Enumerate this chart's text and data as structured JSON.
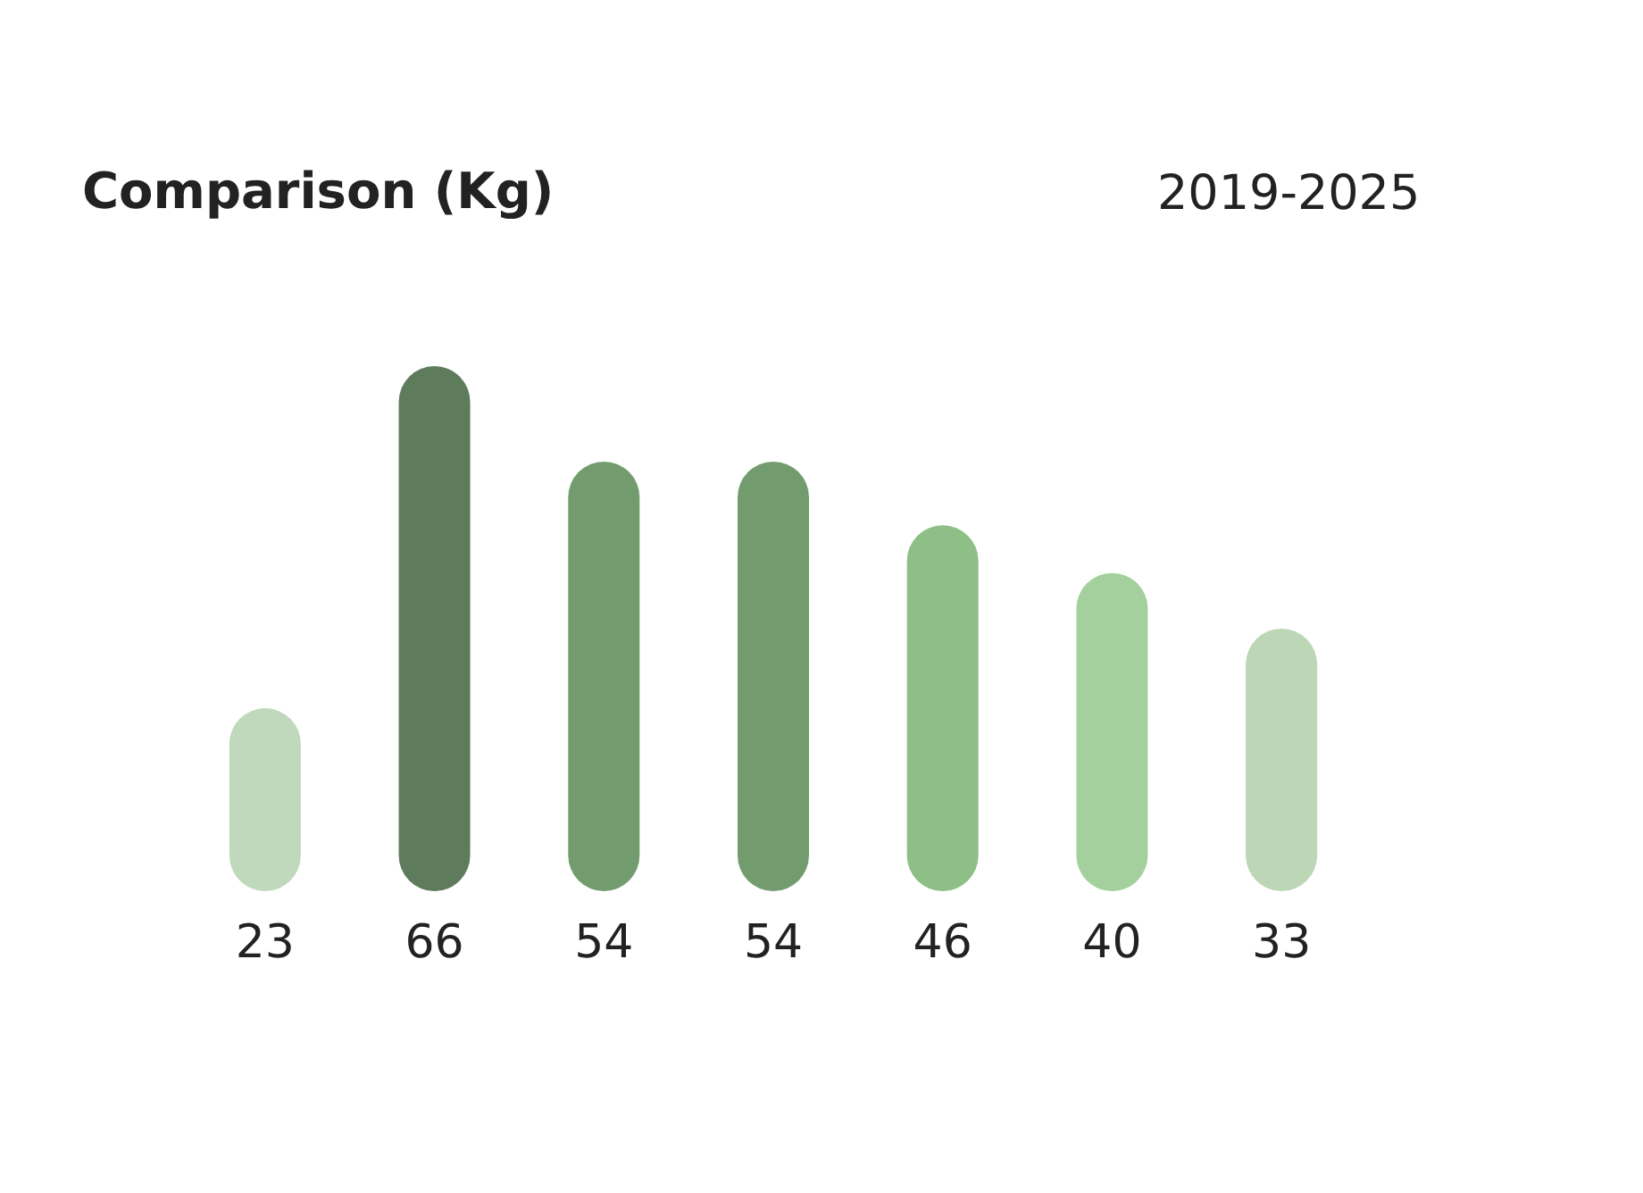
{
  "chart_data": {
    "type": "bar",
    "title": "Comparison (Kg)",
    "subtitle": "2019-2025",
    "categories": [
      null,
      null,
      null,
      null,
      null,
      null,
      null
    ],
    "values": [
      23,
      66,
      54,
      54,
      46,
      40,
      33
    ],
    "colors": [
      "#c0d9bc",
      "#5e7c5c",
      "#739c6e",
      "#739c6e",
      "#8dbf87",
      "#a3d09c",
      "#bcd6b6"
    ],
    "data_labels": true
  }
}
